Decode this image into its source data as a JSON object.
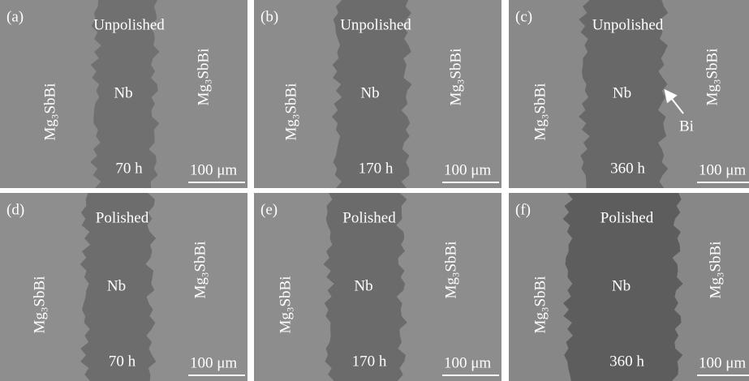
{
  "panels": [
    {
      "label": "(a)",
      "condition": "Unpolished",
      "center": "Nb",
      "left": "Mg₃SbBi",
      "right": "Mg₃SbBi",
      "time": "70 h",
      "scale": "100 μm"
    },
    {
      "label": "(b)",
      "condition": "Unpolished",
      "center": "Nb",
      "left": "Mg₃SbBi",
      "right": "Mg₃SbBi",
      "time": "170 h",
      "scale": "100 μm"
    },
    {
      "label": "(c)",
      "condition": "Unpolished",
      "center": "Nb",
      "left": "Mg₃SbBi",
      "right": "Mg₃SbBi",
      "time": "360 h",
      "scale": "100 μm",
      "annotation": "Bi"
    },
    {
      "label": "(d)",
      "condition": "Polished",
      "center": "Nb",
      "left": "Mg₃SbBi",
      "right": "Mg₃SbBi",
      "time": "70 h",
      "scale": "100 μm"
    },
    {
      "label": "(e)",
      "condition": "Polished",
      "center": "Nb",
      "left": "Mg₃SbBi",
      "right": "Mg₃SbBi",
      "time": "170 h",
      "scale": "100 μm"
    },
    {
      "label": "(f)",
      "condition": "Polished",
      "center": "Nb",
      "left": "Mg₃SbBi",
      "right": "Mg₃SbBi",
      "time": "360 h",
      "scale": "100 μm"
    }
  ]
}
